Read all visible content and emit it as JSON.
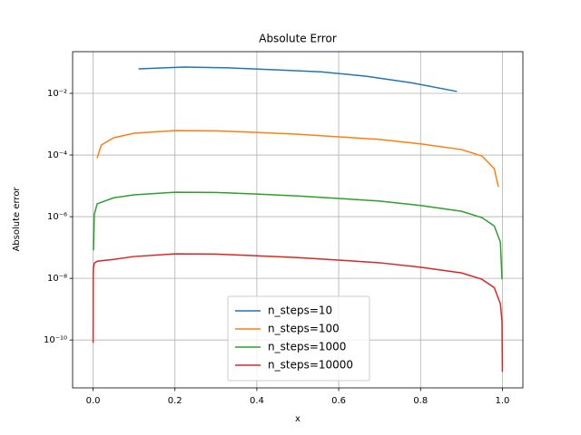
{
  "chart_data": {
    "type": "line",
    "title": "Absolute Error",
    "x_label": "x",
    "y_label": "Absolute error",
    "log_y": true,
    "grid": true,
    "legend_position": "lower center",
    "xlim": [
      -0.05,
      1.05
    ],
    "xticks": [
      {
        "value": 0,
        "label": "0.0"
      },
      0.2,
      0.4,
      0.6,
      0.8,
      {
        "value": 1,
        "label": "1.0"
      }
    ],
    "ylim": [
      2.8e-12,
      0.225
    ],
    "yticks": [
      {
        "value": 1e-10,
        "label": "10⁻¹⁰"
      },
      {
        "value": 1e-08,
        "label": "10⁻⁸"
      },
      {
        "value": 1e-06,
        "label": "10⁻⁶"
      },
      {
        "value": 0.0001,
        "label": "10⁻⁴"
      },
      {
        "value": 0.01,
        "label": "10⁻²"
      }
    ],
    "series": [
      {
        "name": "n_steps=10",
        "color": "#1f77b4",
        "x": [
          0.111,
          0.222,
          0.333,
          0.444,
          0.556,
          0.667,
          0.778,
          0.889
        ],
        "values": [
          0.062,
          0.071,
          0.067,
          0.058,
          0.05,
          0.036,
          0.022,
          0.0115
        ]
      },
      {
        "name": "n_steps=100",
        "color": "#ff7f0e",
        "x": [
          0.01,
          0.02,
          0.05,
          0.1,
          0.2,
          0.3,
          0.4,
          0.5,
          0.6,
          0.7,
          0.8,
          0.9,
          0.95,
          0.98,
          0.99
        ],
        "values": [
          8e-05,
          0.00021,
          0.00036,
          0.00051,
          0.00062,
          0.00061,
          0.00054,
          0.00047,
          0.00039,
          0.00032,
          0.00023,
          0.00015,
          9.3e-05,
          3.6e-05,
          9.3e-06
        ]
      },
      {
        "name": "n_steps=1000",
        "color": "#2ca02c",
        "x": [
          0.001,
          0.003,
          0.01,
          0.05,
          0.1,
          0.2,
          0.3,
          0.4,
          0.5,
          0.6,
          0.7,
          0.8,
          0.9,
          0.95,
          0.98,
          0.995,
          0.999
        ],
        "values": [
          8.1e-08,
          1.2e-06,
          2.6e-06,
          4.1e-06,
          5.1e-06,
          6.2e-06,
          6.1e-06,
          5.4e-06,
          4.7e-06,
          3.9e-06,
          3.2e-06,
          2.3e-06,
          1.5e-06,
          9.3e-07,
          5e-07,
          1.5e-07,
          9.3e-09
        ]
      },
      {
        "name": "n_steps=10000",
        "color": "#d62728",
        "x": [
          0.0001,
          0.0003,
          0.001,
          0.003,
          0.01,
          0.05,
          0.1,
          0.2,
          0.3,
          0.4,
          0.5,
          0.6,
          0.7,
          0.8,
          0.9,
          0.95,
          0.98,
          0.995,
          0.999,
          0.9999
        ],
        "values": [
          8.1e-11,
          1.2e-08,
          2.2e-08,
          3.1e-08,
          3.6e-08,
          4.1e-08,
          5.1e-08,
          6.2e-08,
          6.1e-08,
          5.4e-08,
          4.7e-08,
          3.9e-08,
          3.2e-08,
          2.3e-08,
          1.5e-08,
          9.3e-09,
          5e-09,
          1.5e-09,
          4e-10,
          9.3e-12
        ]
      }
    ]
  }
}
